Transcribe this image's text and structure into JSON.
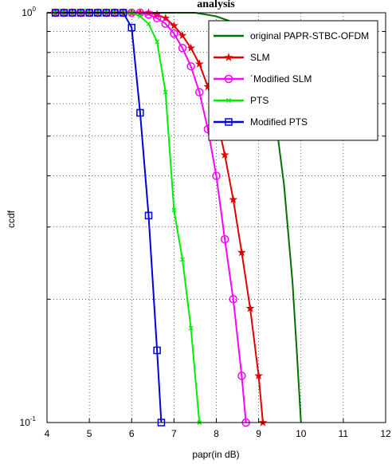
{
  "chart_data": {
    "type": "line",
    "title": "analysis",
    "xlabel": "papr(in dB)",
    "ylabel": "ccdf",
    "xlim": [
      4,
      12
    ],
    "ylim": [
      0.1,
      1
    ],
    "yscale": "log",
    "grid": true,
    "legend_position": "top-right",
    "x_ticks": [
      "4",
      "5",
      "6",
      "7",
      "8",
      "9",
      "10",
      "11",
      "12"
    ],
    "y_ticks": [
      {
        "base": "10",
        "exp": "0",
        "value": 1
      },
      {
        "base": "10",
        "exp": "-1",
        "value": 0.1
      }
    ],
    "series": [
      {
        "name": "original PAPR-STBC-OFDM",
        "color": "#007000",
        "marker": "none",
        "x": [
          4.0,
          5.0,
          6.0,
          7.0,
          7.5,
          8.0,
          8.5,
          8.9,
          9.2,
          9.4,
          9.6,
          9.8,
          9.9,
          10.0
        ],
        "y": [
          1.0,
          1.0,
          1.0,
          1.0,
          1.0,
          0.98,
          0.94,
          0.87,
          0.72,
          0.55,
          0.38,
          0.22,
          0.15,
          0.1
        ]
      },
      {
        "name": "SLM",
        "color": "#e00000",
        "marker": "star",
        "x": [
          4.2,
          4.4,
          4.6,
          4.8,
          5.0,
          5.2,
          5.4,
          5.6,
          5.8,
          6.0,
          6.2,
          6.4,
          6.6,
          6.8,
          7.0,
          7.2,
          7.4,
          7.6,
          7.8,
          8.0,
          8.2,
          8.4,
          8.6,
          8.8,
          9.0,
          9.1
        ],
        "y": [
          1.0,
          1.0,
          1.0,
          1.0,
          1.0,
          1.0,
          1.0,
          1.0,
          1.0,
          1.0,
          1.0,
          1.0,
          0.99,
          0.97,
          0.93,
          0.88,
          0.82,
          0.75,
          0.66,
          0.56,
          0.45,
          0.35,
          0.26,
          0.19,
          0.13,
          0.1
        ]
      },
      {
        "name": "´Modified SLM",
        "color": "#ff00ff",
        "marker": "circle",
        "x": [
          4.2,
          4.4,
          4.6,
          4.8,
          5.0,
          5.2,
          5.4,
          5.6,
          5.8,
          6.0,
          6.2,
          6.4,
          6.6,
          6.8,
          7.0,
          7.2,
          7.4,
          7.6,
          7.8,
          8.0,
          8.2,
          8.4,
          8.6,
          8.7
        ],
        "y": [
          1.0,
          1.0,
          1.0,
          1.0,
          1.0,
          1.0,
          1.0,
          1.0,
          1.0,
          1.0,
          1.0,
          0.99,
          0.97,
          0.94,
          0.89,
          0.82,
          0.74,
          0.64,
          0.52,
          0.4,
          0.28,
          0.2,
          0.13,
          0.1
        ]
      },
      {
        "name": "PTS",
        "color": "#00ee00",
        "marker": "x",
        "x": [
          4.2,
          4.4,
          4.6,
          4.8,
          5.0,
          5.2,
          5.4,
          5.6,
          5.8,
          6.0,
          6.2,
          6.4,
          6.6,
          6.8,
          7.0,
          7.2,
          7.4,
          7.6
        ],
        "y": [
          1.0,
          1.0,
          1.0,
          1.0,
          1.0,
          1.0,
          1.0,
          1.0,
          1.0,
          1.0,
          0.98,
          0.94,
          0.85,
          0.64,
          0.33,
          0.25,
          0.17,
          0.1
        ]
      },
      {
        "name": "Modified PTS",
        "color": "#0000dd",
        "marker": "square",
        "x": [
          4.2,
          4.4,
          4.6,
          4.8,
          5.0,
          5.2,
          5.4,
          5.6,
          5.8,
          6.0,
          6.2,
          6.4,
          6.6,
          6.7
        ],
        "y": [
          1.0,
          1.0,
          1.0,
          1.0,
          1.0,
          1.0,
          1.0,
          1.0,
          1.0,
          0.92,
          0.57,
          0.32,
          0.15,
          0.1
        ]
      }
    ]
  }
}
